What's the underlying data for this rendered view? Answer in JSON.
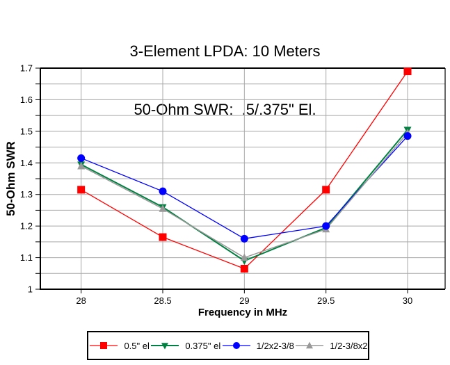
{
  "title": {
    "line1": "3-Element LPDA: 10 Meters",
    "line2": "50-Ohm SWR:  .5/.375\" El."
  },
  "chart_data": {
    "type": "line",
    "title": "3-Element LPDA: 10 Meters",
    "subtitle": "50-Ohm SWR:  .5/.375\" El.",
    "xlabel": "Frequency in MHz",
    "ylabel": "50-Ohm SWR",
    "xlim": [
      27.75,
      30.23
    ],
    "ylim": [
      1.0,
      1.7
    ],
    "xticks": [
      "28",
      "28.5",
      "29",
      "29.5",
      "30"
    ],
    "xtick_values": [
      28,
      28.5,
      29,
      29.5,
      30
    ],
    "yticks": [
      "1",
      "1.1",
      "1.2",
      "1.3",
      "1.4",
      "1.5",
      "1.6",
      "1.7"
    ],
    "ytick_values": [
      1,
      1.1,
      1.2,
      1.3,
      1.4,
      1.5,
      1.6,
      1.7
    ],
    "y_minor_step": 0.05,
    "grid": true,
    "legend_position": "bottom",
    "x": [
      28,
      28.5,
      29,
      29.5,
      30
    ],
    "series": [
      {
        "name": "0.5\" el",
        "color": "#ff0000",
        "marker": "square",
        "line_width": 1.3,
        "values": [
          1.315,
          1.165,
          1.065,
          1.315,
          1.69
        ]
      },
      {
        "name": "0.375\" el",
        "color": "#008040",
        "marker": "triangle-down",
        "line_width": 2.0,
        "values": [
          1.395,
          1.26,
          1.09,
          1.195,
          1.505
        ]
      },
      {
        "name": "1/2x2-3/8",
        "color": "#0000ff",
        "marker": "circle",
        "line_width": 1.3,
        "values": [
          1.415,
          1.31,
          1.16,
          1.2,
          1.485
        ]
      },
      {
        "name": "1/2-3/8x2",
        "color": "#999999",
        "marker": "triangle-up",
        "line_width": 1.5,
        "values": [
          1.39,
          1.255,
          1.1,
          1.19,
          1.495
        ]
      }
    ],
    "colors": {
      "grid": "#a8a8a8",
      "axis": "#000000",
      "background": "#ffffff"
    }
  }
}
